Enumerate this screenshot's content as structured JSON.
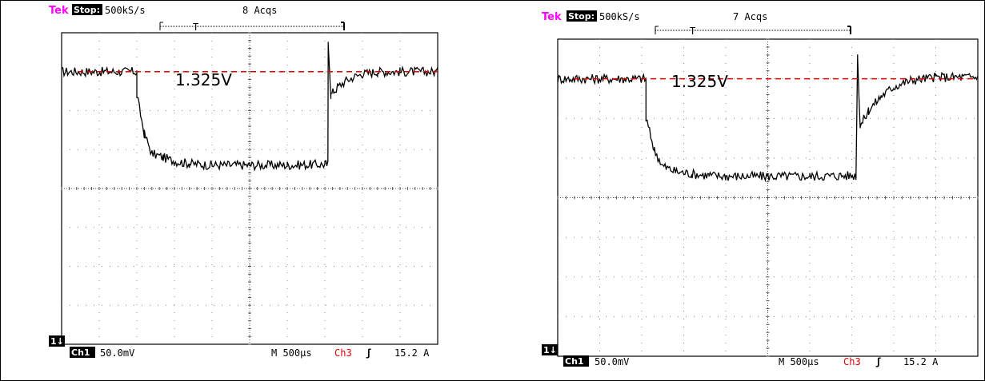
{
  "colors": {
    "brand": "#ff00ff",
    "trace": "#000000",
    "reference": "#e00000",
    "channel3": "#e00000",
    "grid": "#888888"
  },
  "chart_data": [
    {
      "type": "line",
      "title": "",
      "header": {
        "brand": "Tek",
        "status": "Stop:",
        "rate": "500kS/s",
        "acquisitions": "8 Acqs"
      },
      "footer": {
        "marker": "1↓",
        "channel": "Ch1",
        "scale": "50.0mV",
        "timebase": "M 500µs",
        "trigger_channel": "Ch3",
        "trigger_slope": "ʃ",
        "trigger_level": "15.2 A"
      },
      "reference_line": {
        "label": "1.325V",
        "value": 1.325
      },
      "xlim": [
        0,
        5000
      ],
      "x_unit": "µs",
      "ylim": [
        -0.2,
        0.2
      ],
      "y_unit": "V",
      "grid": true,
      "divisions": {
        "x": 10,
        "y": 8
      },
      "series": [
        {
          "x": [
            0,
            1000,
            1000,
            1100,
            1200,
            1350,
            1500,
            1700,
            2000,
            2500,
            3000,
            3500,
            3540,
            3545,
            3580,
            3620,
            3700,
            3850,
            4000,
            4200,
            4500,
            5000
          ],
          "values": [
            0.15,
            0.15,
            0.12,
            0.07,
            0.045,
            0.04,
            0.035,
            0.032,
            0.03,
            0.03,
            0.03,
            0.031,
            0.031,
            0.19,
            0.12,
            0.125,
            0.133,
            0.142,
            0.147,
            0.15,
            0.15,
            0.15
          ]
        }
      ]
    },
    {
      "type": "line",
      "title": "",
      "header": {
        "brand": "Tek",
        "status": "Stop:",
        "rate": "500kS/s",
        "acquisitions": "7 Acqs"
      },
      "footer": {
        "marker": "1↓",
        "channel": "Ch1",
        "scale": "50.0mV",
        "timebase": "M 500µs",
        "trigger_channel": "Ch3",
        "trigger_slope": "ʃ",
        "trigger_level": "15.2 A"
      },
      "reference_line": {
        "label": "1.325V",
        "value": 1.325
      },
      "xlim": [
        0,
        5000
      ],
      "x_unit": "µs",
      "ylim": [
        -0.2,
        0.2
      ],
      "y_unit": "V",
      "grid": true,
      "divisions": {
        "x": 10,
        "y": 8
      },
      "series": [
        {
          "x": [
            0,
            1050,
            1050,
            1150,
            1250,
            1400,
            1600,
            1800,
            2000,
            2500,
            3000,
            3550,
            3570,
            3600,
            3700,
            3850,
            4000,
            4200,
            4500,
            5000
          ],
          "values": [
            0.15,
            0.15,
            0.1,
            0.06,
            0.04,
            0.033,
            0.03,
            0.028,
            0.027,
            0.027,
            0.027,
            0.028,
            0.18,
            0.09,
            0.11,
            0.128,
            0.14,
            0.148,
            0.152,
            0.152
          ]
        }
      ]
    }
  ]
}
